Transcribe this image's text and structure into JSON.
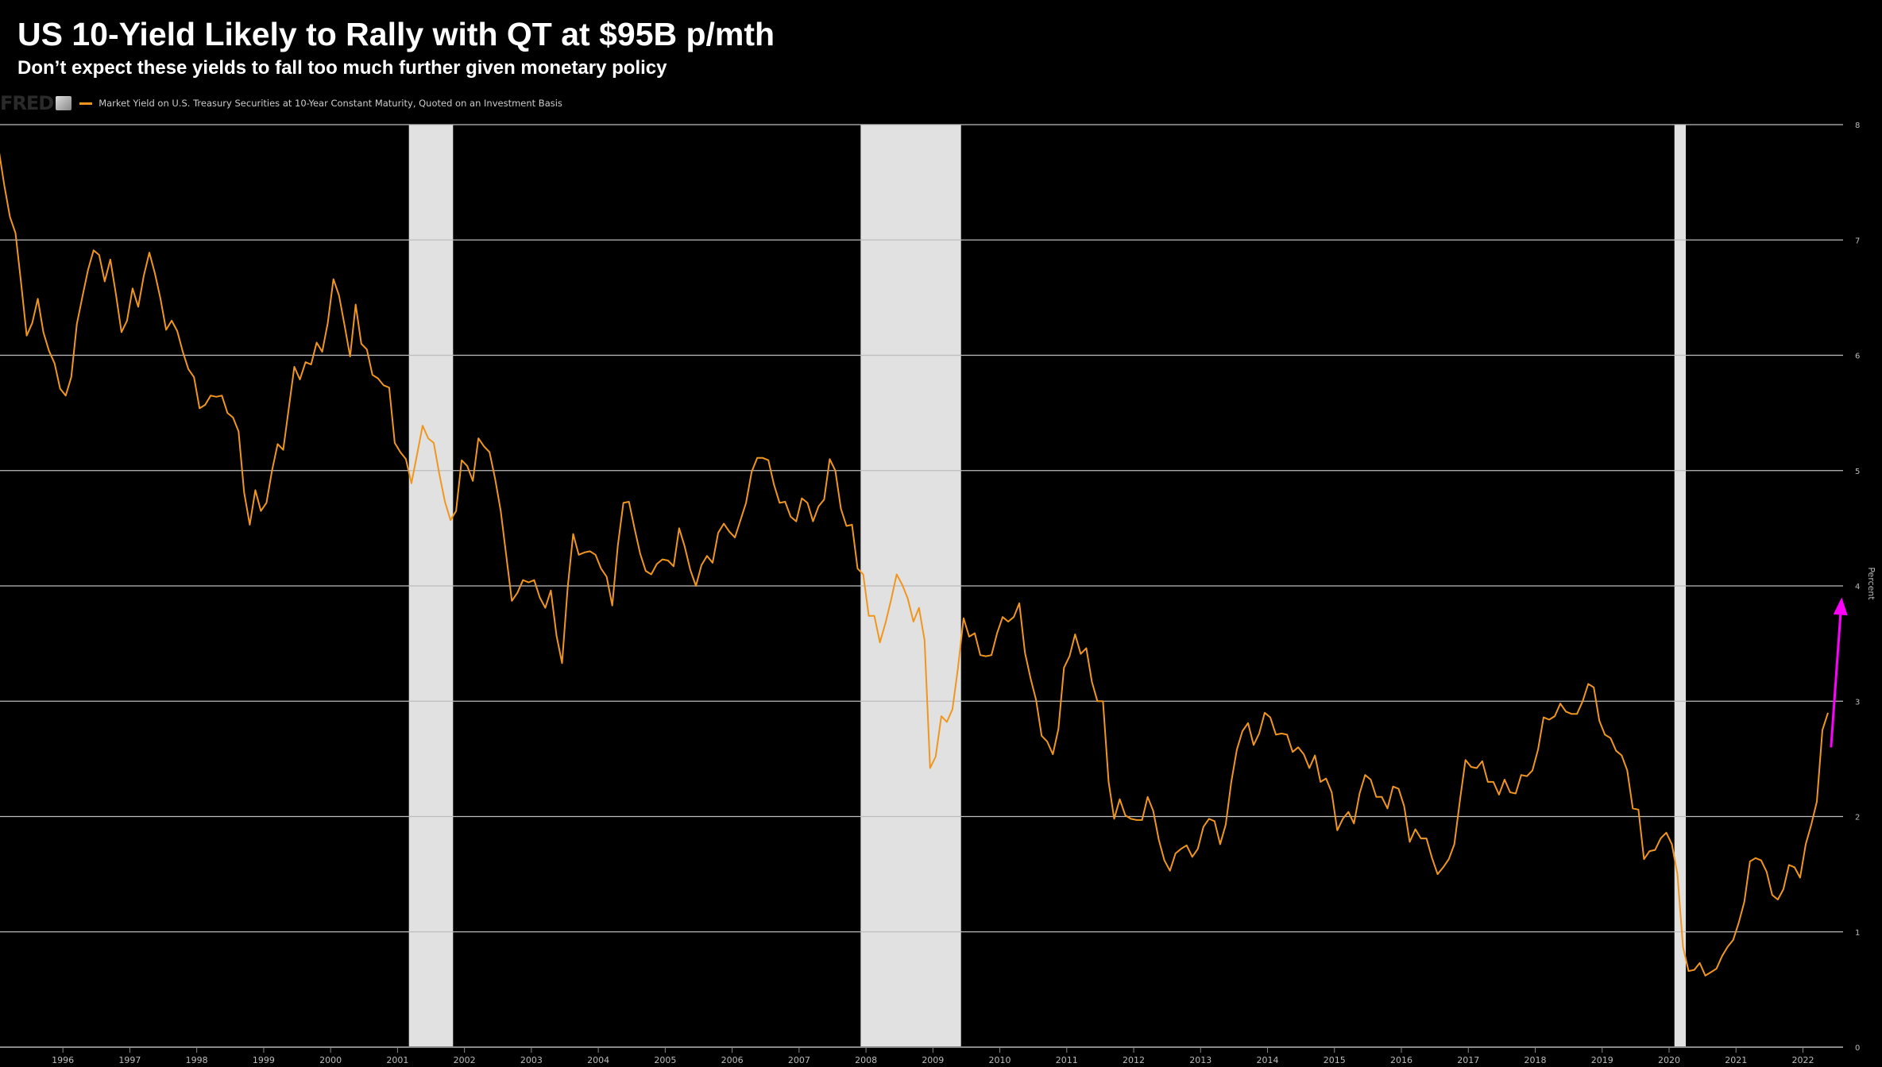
{
  "title": "US 10-Yield Likely to Rally with QT at $95B p/mth",
  "subtitle": "Don’t expect these yields to fall too much further given monetary policy",
  "fred_logo": "FRED",
  "colors": {
    "line": "#f0961e",
    "recession": "#e1e1e1",
    "grid": "#bdbdbd",
    "arrow": "#ff00ff",
    "background": "#000000"
  },
  "chart_data": {
    "type": "line",
    "title": "US 10-Yield Likely to Rally with QT at $95B p/mth",
    "xlabel": "",
    "ylabel": "Percent",
    "xlim": [
      1995.06,
      2022.6
    ],
    "ylim": [
      0,
      8
    ],
    "grid": true,
    "legend": {
      "placement": "top-left",
      "entries": [
        "Market Yield on U.S. Treasury Securities at 10-Year Constant Maturity, Quoted on an Investment Basis"
      ]
    },
    "x_ticks": [
      "1996",
      "1997",
      "1998",
      "1999",
      "2000",
      "2001",
      "2002",
      "2003",
      "2004",
      "2005",
      "2006",
      "2007",
      "2008",
      "2009",
      "2010",
      "2011",
      "2012",
      "2013",
      "2014",
      "2015",
      "2016",
      "2017",
      "2018",
      "2019",
      "2020",
      "2021",
      "2022"
    ],
    "y_ticks": [
      "0",
      "1",
      "2",
      "3",
      "4",
      "5",
      "6",
      "7",
      "8"
    ],
    "recessions": [
      [
        2001.17,
        2001.83
      ],
      [
        2007.92,
        2009.42
      ],
      [
        2020.08,
        2020.25
      ]
    ],
    "series": [
      {
        "name": "Market Yield on U.S. Treasury Securities at 10-Year Constant Maturity, Quoted on an Investment Basis",
        "start": "1995-01",
        "frequency": "monthly",
        "values": [
          7.78,
          7.47,
          7.2,
          7.06,
          6.63,
          6.17,
          6.28,
          6.49,
          6.2,
          6.04,
          5.93,
          5.71,
          5.65,
          5.81,
          6.27,
          6.51,
          6.74,
          6.91,
          6.87,
          6.64,
          6.83,
          6.53,
          6.2,
          6.3,
          6.58,
          6.42,
          6.69,
          6.89,
          6.71,
          6.49,
          6.22,
          6.3,
          6.21,
          6.03,
          5.88,
          5.81,
          5.54,
          5.57,
          5.65,
          5.64,
          5.65,
          5.5,
          5.46,
          5.34,
          4.81,
          4.53,
          4.83,
          4.65,
          4.72,
          5.0,
          5.23,
          5.18,
          5.54,
          5.9,
          5.79,
          5.94,
          5.92,
          6.11,
          6.03,
          6.28,
          6.66,
          6.52,
          6.26,
          5.99,
          6.44,
          6.1,
          6.05,
          5.83,
          5.8,
          5.74,
          5.72,
          5.24,
          5.16,
          5.1,
          4.89,
          5.14,
          5.39,
          5.28,
          5.24,
          4.97,
          4.73,
          4.57,
          4.65,
          5.09,
          5.04,
          4.91,
          5.28,
          5.21,
          5.16,
          4.93,
          4.65,
          4.26,
          3.87,
          3.94,
          4.05,
          4.03,
          4.05,
          3.9,
          3.81,
          3.96,
          3.57,
          3.33,
          3.98,
          4.45,
          4.27,
          4.29,
          4.3,
          4.27,
          4.15,
          4.08,
          3.83,
          4.35,
          4.72,
          4.73,
          4.5,
          4.28,
          4.13,
          4.1,
          4.19,
          4.23,
          4.22,
          4.17,
          4.5,
          4.34,
          4.14,
          4.0,
          4.18,
          4.26,
          4.2,
          4.46,
          4.54,
          4.47,
          4.42,
          4.57,
          4.72,
          4.99,
          5.11,
          5.11,
          5.09,
          4.88,
          4.72,
          4.73,
          4.6,
          4.56,
          4.76,
          4.72,
          4.56,
          4.69,
          4.75,
          5.1,
          5.0,
          4.67,
          4.52,
          4.53,
          4.15,
          4.1,
          3.74,
          3.74,
          3.51,
          3.68,
          3.88,
          4.1,
          4.01,
          3.89,
          3.69,
          3.81,
          3.53,
          2.42,
          2.52,
          2.87,
          2.82,
          2.93,
          3.29,
          3.72,
          3.56,
          3.59,
          3.4,
          3.39,
          3.4,
          3.59,
          3.73,
          3.69,
          3.73,
          3.85,
          3.42,
          3.2,
          3.01,
          2.7,
          2.65,
          2.54,
          2.76,
          3.29,
          3.39,
          3.58,
          3.41,
          3.46,
          3.17,
          3.0,
          3.0,
          2.3,
          1.98,
          2.15,
          2.01,
          1.98,
          1.97,
          1.97,
          2.17,
          2.05,
          1.8,
          1.62,
          1.53,
          1.68,
          1.72,
          1.75,
          1.65,
          1.72,
          1.91,
          1.98,
          1.96,
          1.76,
          1.93,
          2.3,
          2.58,
          2.74,
          2.81,
          2.62,
          2.72,
          2.9,
          2.86,
          2.71,
          2.72,
          2.71,
          2.56,
          2.6,
          2.54,
          2.42,
          2.53,
          2.3,
          2.33,
          2.21,
          1.88,
          1.98,
          2.04,
          1.94,
          2.2,
          2.36,
          2.32,
          2.17,
          2.17,
          2.07,
          2.26,
          2.24,
          2.09,
          1.78,
          1.89,
          1.81,
          1.81,
          1.64,
          1.5,
          1.56,
          1.63,
          1.76,
          2.14,
          2.49,
          2.43,
          2.42,
          2.48,
          2.3,
          2.3,
          2.19,
          2.32,
          2.21,
          2.2,
          2.36,
          2.35,
          2.4,
          2.58,
          2.86,
          2.84,
          2.87,
          2.98,
          2.91,
          2.89,
          2.89,
          3.0,
          3.15,
          3.12,
          2.83,
          2.71,
          2.68,
          2.57,
          2.53,
          2.4,
          2.07,
          2.06,
          1.63,
          1.7,
          1.71,
          1.81,
          1.86,
          1.76,
          1.5,
          0.87,
          0.66,
          0.67,
          0.73,
          0.62,
          0.65,
          0.68,
          0.79,
          0.87,
          0.93,
          1.08,
          1.26,
          1.61,
          1.64,
          1.62,
          1.52,
          1.32,
          1.28,
          1.37,
          1.58,
          1.56,
          1.47,
          1.76,
          1.93,
          2.13,
          2.75,
          2.9
        ]
      }
    ],
    "annotations": [
      {
        "type": "arrow",
        "from": [
          2022.42,
          2.6
        ],
        "to": [
          2022.58,
          3.9
        ]
      }
    ]
  }
}
